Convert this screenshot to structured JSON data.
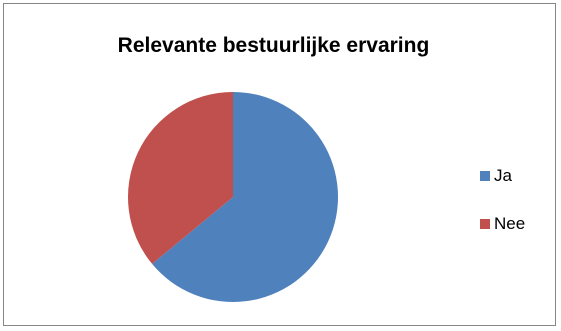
{
  "chart_data": {
    "type": "pie",
    "title": "Relevante bestuurlijke ervaring",
    "categories": [
      "Ja",
      "Nee"
    ],
    "values": [
      64,
      36
    ],
    "colors": [
      "#4F81BD",
      "#C0504D"
    ],
    "legend_position": "right"
  }
}
